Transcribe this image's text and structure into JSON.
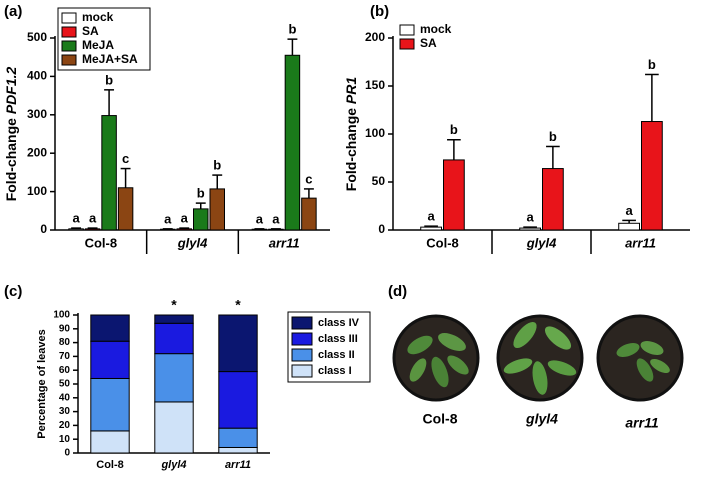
{
  "chart_data": [
    {
      "type": "bar",
      "panel_label": "(a)",
      "y_label": "Fold-change ",
      "y_label_italic": "PDF1.2",
      "categories": [
        "Col-8",
        "glyl4",
        "arr11"
      ],
      "series": [
        {
          "name": "mock",
          "color": "#ffffff",
          "values": [
            3,
            2,
            2
          ],
          "errors": [
            2,
            1,
            1
          ],
          "letters": [
            "a",
            "a",
            "a"
          ]
        },
        {
          "name": "SA",
          "color": "#e8141a",
          "values": [
            3,
            3,
            2
          ],
          "errors": [
            2,
            2,
            1
          ],
          "letters": [
            "a",
            "a",
            "a"
          ]
        },
        {
          "name": "MeJA",
          "color": "#1a7a1a",
          "values": [
            298,
            55,
            455
          ],
          "errors": [
            67,
            15,
            42
          ],
          "letters": [
            "b",
            "b",
            "b"
          ]
        },
        {
          "name": "MeJA+SA",
          "color": "#8b4513",
          "values": [
            110,
            107,
            83
          ],
          "errors": [
            50,
            36,
            24
          ],
          "letters": [
            "c",
            "b",
            "c"
          ]
        }
      ],
      "ylim": [
        0,
        500
      ],
      "yticks": [
        0,
        100,
        200,
        300,
        400,
        500
      ],
      "legend": "upper left"
    },
    {
      "type": "bar",
      "panel_label": "(b)",
      "y_label": "Fold-change ",
      "y_label_italic": "PR1",
      "categories": [
        "Col-8",
        "glyl4",
        "arr11"
      ],
      "series": [
        {
          "name": "mock",
          "color": "#ffffff",
          "values": [
            3,
            2,
            7
          ],
          "errors": [
            1,
            1,
            3
          ],
          "letters": [
            "a",
            "a",
            "a"
          ]
        },
        {
          "name": "SA",
          "color": "#e8141a",
          "values": [
            73,
            64,
            113
          ],
          "errors": [
            21,
            23,
            49
          ],
          "letters": [
            "b",
            "b",
            "b"
          ]
        }
      ],
      "ylim": [
        0,
        200
      ],
      "yticks": [
        0,
        50,
        100,
        150,
        200
      ],
      "legend": "upper left"
    },
    {
      "type": "stacked_bar",
      "panel_label": "(c)",
      "y_label": "Percentage of leaves",
      "categories": [
        "Col-8",
        "glyl4",
        "arr11"
      ],
      "annotations": [
        null,
        "*",
        "*"
      ],
      "series": [
        {
          "name": "class I",
          "color": "#cfe2f8",
          "values": [
            16,
            37,
            4
          ]
        },
        {
          "name": "class II",
          "color": "#4a90e8",
          "values": [
            38,
            35,
            14
          ]
        },
        {
          "name": "class III",
          "color": "#1a1ae0",
          "values": [
            27,
            22,
            41
          ]
        },
        {
          "name": "class IV",
          "color": "#0b1670",
          "values": [
            19,
            6,
            41
          ]
        }
      ],
      "ylim": [
        0,
        100
      ],
      "yticks": [
        0,
        10,
        20,
        30,
        40,
        50,
        60,
        70,
        80,
        90,
        100
      ],
      "legend": "right"
    }
  ],
  "photos": {
    "panel_label": "(d)",
    "labels": [
      "Col-8",
      "glyl4",
      "arr11"
    ]
  }
}
